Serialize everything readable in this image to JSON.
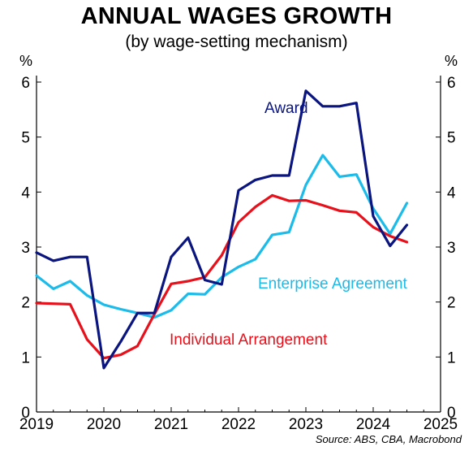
{
  "chart_data": {
    "type": "line",
    "title": "ANNUAL WAGES GROWTH",
    "subtitle": "(by wage-setting mechanism)",
    "ylabel_left": "%",
    "ylabel_right": "%",
    "ylim": [
      0,
      6
    ],
    "yticks": [
      "0",
      "1",
      "2",
      "3",
      "4",
      "5",
      "6"
    ],
    "xlim": [
      2019,
      2025
    ],
    "xticks": [
      "2019",
      "2020",
      "2021",
      "2022",
      "2023",
      "2024",
      "2025"
    ],
    "grid": false,
    "source": "Source: ABS, CBA, Macrobond",
    "series": [
      {
        "name": "Award",
        "color": "#0a1580",
        "x": [
          2019.0,
          2019.25,
          2019.5,
          2019.75,
          2020.0,
          2020.25,
          2020.5,
          2020.75,
          2021.0,
          2021.25,
          2021.5,
          2021.75,
          2022.0,
          2022.25,
          2022.5,
          2022.75,
          2023.0,
          2023.25,
          2023.5,
          2023.75,
          2024.0,
          2024.25,
          2024.5
        ],
        "values": [
          2.9,
          2.75,
          2.82,
          2.82,
          0.8,
          1.28,
          1.8,
          1.8,
          2.82,
          3.17,
          2.4,
          2.32,
          4.03,
          4.22,
          4.3,
          4.3,
          5.84,
          5.56,
          5.56,
          5.62,
          3.56,
          3.02,
          3.4
        ]
      },
      {
        "name": "Enterprise Agreement",
        "color": "#1bbbea",
        "x": [
          2019.0,
          2019.25,
          2019.5,
          2019.75,
          2020.0,
          2020.25,
          2020.5,
          2020.75,
          2021.0,
          2021.25,
          2021.5,
          2021.75,
          2022.0,
          2022.25,
          2022.5,
          2022.75,
          2023.0,
          2023.25,
          2023.5,
          2023.75,
          2024.0,
          2024.25,
          2024.5
        ],
        "values": [
          2.48,
          2.24,
          2.38,
          2.12,
          1.95,
          1.87,
          1.8,
          1.72,
          1.85,
          2.15,
          2.14,
          2.45,
          2.64,
          2.78,
          3.22,
          3.27,
          4.13,
          4.67,
          4.28,
          4.32,
          3.7,
          3.24,
          3.8
        ]
      },
      {
        "name": "Individual Arrangement",
        "color": "#e8101a",
        "x": [
          2019.0,
          2019.25,
          2019.5,
          2019.75,
          2020.0,
          2020.25,
          2020.5,
          2020.75,
          2021.0,
          2021.25,
          2021.5,
          2021.75,
          2022.0,
          2022.25,
          2022.5,
          2022.75,
          2023.0,
          2023.25,
          2023.5,
          2023.75,
          2024.0,
          2024.25,
          2024.5
        ],
        "values": [
          1.98,
          1.97,
          1.96,
          1.32,
          0.98,
          1.04,
          1.2,
          1.78,
          2.33,
          2.38,
          2.45,
          2.85,
          3.45,
          3.73,
          3.94,
          3.84,
          3.85,
          3.76,
          3.66,
          3.63,
          3.36,
          3.2,
          3.09
        ]
      }
    ]
  }
}
